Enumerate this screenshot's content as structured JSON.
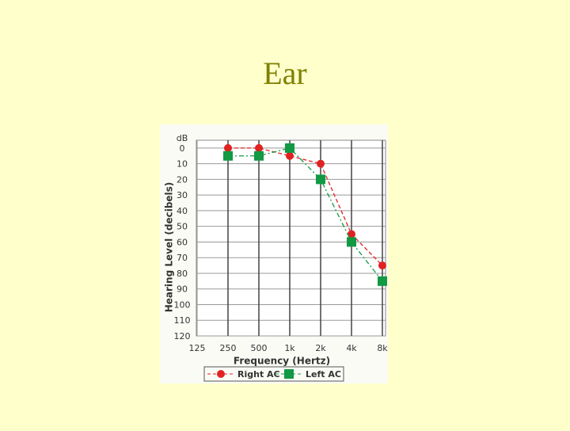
{
  "chart_data": {
    "type": "line",
    "title": "Ear",
    "categories": [
      "125",
      "250",
      "500",
      "1k",
      "2k",
      "4k",
      "8k"
    ],
    "series": [
      {
        "name": "Right AC",
        "color": "#e02222",
        "marker": "circle",
        "values": [
          null,
          0,
          0,
          5,
          10,
          55,
          75
        ]
      },
      {
        "name": "Left AC",
        "color": "#119944",
        "marker": "square",
        "values": [
          null,
          5,
          5,
          0,
          20,
          60,
          85
        ]
      }
    ],
    "y_unit": "dB",
    "ylabel": "Hearing Level (decibels)",
    "xlabel": "Frequency (Hertz)",
    "ylim": [
      -5,
      120
    ],
    "y_inverted": true,
    "yticks": [
      0,
      10,
      20,
      30,
      40,
      50,
      60,
      70,
      80,
      90,
      100,
      110,
      120
    ],
    "grid": true,
    "legend": "bottom"
  }
}
